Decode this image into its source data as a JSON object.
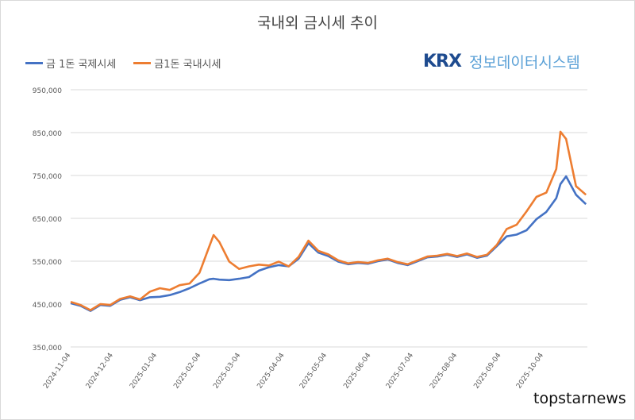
{
  "chart_data": {
    "type": "line",
    "title": "국내외 금시세 추이",
    "xlabel": "",
    "ylabel": "",
    "ylim": [
      350000,
      950000
    ],
    "yticks": [
      "350,000",
      "450,000",
      "550,000",
      "650,000",
      "750,000",
      "850,000",
      "950,000"
    ],
    "ytick_values": [
      350000,
      450000,
      550000,
      650000,
      750000,
      850000,
      950000
    ],
    "xticks": [
      "2024-11-04",
      "2024-12-04",
      "2025-01-04",
      "2025-02-04",
      "2025-03-04",
      "2025-04-04",
      "2025-05-04",
      "2025-06-04",
      "2025-07-04",
      "2025-08-04",
      "2025-09-04",
      "2025-10-04"
    ],
    "xlim": [
      "2024-11-04",
      "2025-11-04"
    ],
    "grid": "horizontal",
    "legend_position": "top-left",
    "x": [
      "2024-11-04",
      "2024-11-11",
      "2024-11-18",
      "2024-11-25",
      "2024-12-02",
      "2024-12-09",
      "2024-12-16",
      "2024-12-23",
      "2024-12-30",
      "2025-01-06",
      "2025-01-13",
      "2025-01-20",
      "2025-01-27",
      "2025-02-03",
      "2025-02-10",
      "2025-02-13",
      "2025-02-17",
      "2025-02-24",
      "2025-03-03",
      "2025-03-10",
      "2025-03-17",
      "2025-03-24",
      "2025-03-31",
      "2025-04-07",
      "2025-04-14",
      "2025-04-21",
      "2025-04-28",
      "2025-05-05",
      "2025-05-12",
      "2025-05-19",
      "2025-05-26",
      "2025-06-02",
      "2025-06-09",
      "2025-06-16",
      "2025-06-23",
      "2025-06-30",
      "2025-07-07",
      "2025-07-14",
      "2025-07-21",
      "2025-07-28",
      "2025-08-04",
      "2025-08-11",
      "2025-08-18",
      "2025-08-25",
      "2025-09-01",
      "2025-09-08",
      "2025-09-15",
      "2025-09-22",
      "2025-09-29",
      "2025-10-06",
      "2025-10-13",
      "2025-10-16",
      "2025-10-20",
      "2025-10-27",
      "2025-11-03"
    ],
    "series": [
      {
        "name": "금 1돈 국제시세",
        "color": "#4472c4",
        "values": [
          452000,
          446000,
          434000,
          448000,
          446000,
          460000,
          466000,
          459000,
          466000,
          467000,
          471000,
          478000,
          487000,
          498000,
          508000,
          509000,
          507000,
          506000,
          509000,
          513000,
          528000,
          536000,
          541000,
          538000,
          556000,
          592000,
          570000,
          562000,
          549000,
          543000,
          546000,
          544000,
          550000,
          554000,
          546000,
          541000,
          550000,
          559000,
          561000,
          565000,
          560000,
          566000,
          558000,
          563000,
          585000,
          608000,
          612000,
          622000,
          648000,
          665000,
          697000,
          730000,
          748000,
          705000,
          683000
        ]
      },
      {
        "name": "금1돈 국내시세",
        "color": "#ed7d31",
        "values": [
          455000,
          448000,
          436000,
          450000,
          448000,
          462000,
          468000,
          461000,
          479000,
          487000,
          483000,
          494000,
          498000,
          523000,
          585000,
          611000,
          595000,
          549000,
          532000,
          538000,
          542000,
          540000,
          549000,
          538000,
          560000,
          598000,
          574000,
          566000,
          552000,
          545000,
          548000,
          546000,
          552000,
          556000,
          548000,
          543000,
          552000,
          561000,
          563000,
          567000,
          562000,
          568000,
          560000,
          565000,
          588000,
          625000,
          635000,
          666000,
          700000,
          710000,
          765000,
          852000,
          835000,
          725000,
          705000
        ]
      }
    ]
  },
  "logo": {
    "brand": "KRX",
    "text": "정보데이터시스템"
  },
  "footer": {
    "watermark": "topstarnews"
  }
}
